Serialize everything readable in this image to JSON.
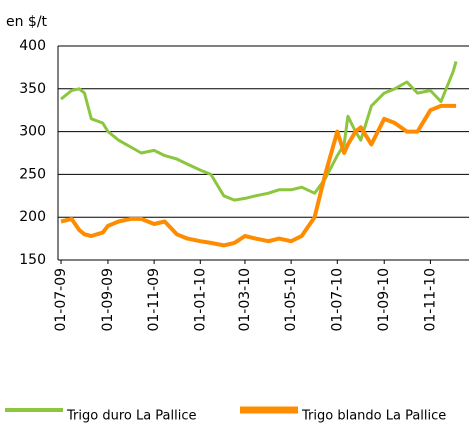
{
  "chart_data": {
    "type": "line",
    "unit_label": "en $/t",
    "x": [
      "01-07-09",
      "15-07-09",
      "25-07-09",
      "01-08-09",
      "10-08-09",
      "25-08-09",
      "01-09-09",
      "15-09-09",
      "01-10-09",
      "15-10-09",
      "01-11-09",
      "15-11-09",
      "01-12-09",
      "15-12-09",
      "01-01-10",
      "15-01-10",
      "01-02-10",
      "15-02-10",
      "01-03-10",
      "15-03-10",
      "01-04-10",
      "15-04-10",
      "01-05-10",
      "15-05-10",
      "01-06-10",
      "15-06-10",
      "01-07-10",
      "10-07-10",
      "15-07-10",
      "25-07-10",
      "01-08-10",
      "15-08-10",
      "01-09-10",
      "15-09-10",
      "01-10-10",
      "15-10-10",
      "01-11-10",
      "15-11-10",
      "01-12-10",
      "05-12-10"
    ],
    "series": [
      {
        "name": "Trigo duro La Pallice",
        "color": "#8cc63f",
        "values": [
          338,
          348,
          350,
          345,
          315,
          310,
          300,
          290,
          282,
          275,
          278,
          272,
          268,
          262,
          255,
          250,
          225,
          220,
          222,
          225,
          228,
          232,
          232,
          235,
          228,
          245,
          272,
          285,
          318,
          300,
          290,
          330,
          345,
          350,
          358,
          345,
          348,
          335,
          370,
          382
        ]
      },
      {
        "name": "Trigo blando La Pallice",
        "color": "#ff8c00",
        "values": [
          195,
          198,
          185,
          180,
          178,
          182,
          190,
          195,
          198,
          198,
          192,
          195,
          180,
          175,
          172,
          170,
          167,
          170,
          178,
          175,
          172,
          175,
          172,
          178,
          200,
          250,
          300,
          275,
          285,
          300,
          305,
          285,
          315,
          310,
          300,
          300,
          325,
          330,
          330,
          330
        ]
      }
    ],
    "xlim": [
      "27-06-09",
      "22-12-10"
    ],
    "xticks": [
      "01-07-09",
      "01-09-09",
      "01-11-09",
      "01-01-10",
      "01-03-10",
      "01-05-10",
      "01-07-10",
      "01-09-10",
      "01-11-10"
    ],
    "ylim": [
      150,
      400
    ],
    "yticks": [
      150,
      200,
      250,
      300,
      350,
      400
    ],
    "grid": true,
    "legend": "bottom"
  }
}
